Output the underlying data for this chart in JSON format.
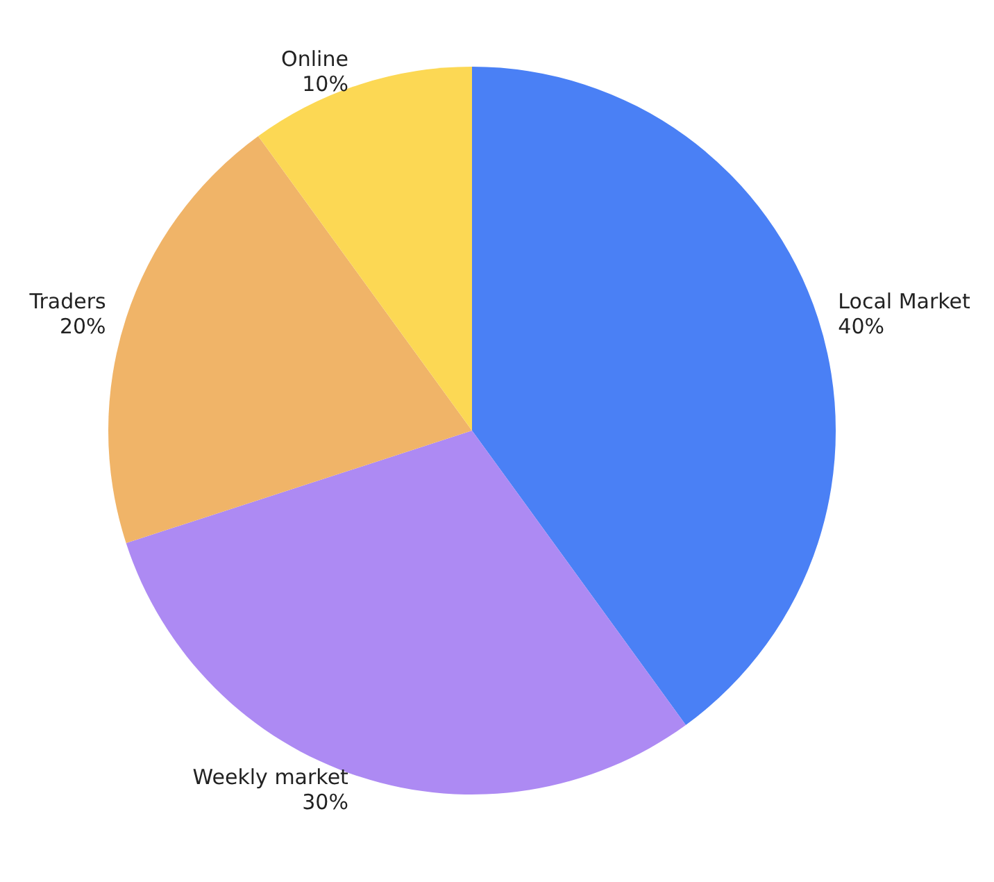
{
  "chart_data": {
    "type": "pie",
    "categories": [
      "Local Market",
      "Weekly market",
      "Traders",
      "Online"
    ],
    "values": [
      40,
      30,
      20,
      10
    ],
    "colors": [
      "#4a80f5",
      "#ad8af3",
      "#f0b468",
      "#fcd854"
    ],
    "value_labels": [
      "40%",
      "30%",
      "20%",
      "10%"
    ]
  }
}
